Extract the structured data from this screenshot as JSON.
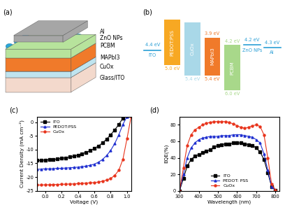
{
  "schematic": {
    "panel_label": "(a)",
    "layers": [
      {
        "name": "Al",
        "kind": "slab",
        "color": "#a6a6a6"
      },
      {
        "name": "ZnO NPs",
        "kind": "particles",
        "color": "#2aa6d8"
      },
      {
        "name": "PCBM",
        "kind": "slab",
        "color": "#b7e39c"
      },
      {
        "name": "MAPbI3",
        "kind": "slab",
        "color": "#f07a2a"
      },
      {
        "name": "CuOx",
        "kind": "slab",
        "color": "#bfe4ef"
      },
      {
        "name": "Glass/ITO",
        "kind": "slab",
        "color": "#f3d9cc"
      }
    ]
  },
  "energy_diagram": {
    "panel_label": "(b)",
    "items": [
      {
        "name": "ITO",
        "kind": "line",
        "color": "#2a9fd6",
        "level": {
          "value": 4.4,
          "label": "4.4 eV"
        }
      },
      {
        "name": "PEDOT:PSS",
        "kind": "box",
        "color": "#f7a823",
        "top": 3.2,
        "bottom": {
          "value": 5.0,
          "label": "5.0 eV"
        }
      },
      {
        "name": "CuOx",
        "kind": "box",
        "color": "#a9d8e8",
        "top": 3.3,
        "bottom": {
          "value": 5.4,
          "label": "5.4 eV"
        }
      },
      {
        "name": "MAPbI3",
        "kind": "box",
        "color": "#f07a2a",
        "top": {
          "value": 3.9,
          "label": "3.9 eV"
        },
        "bottom": {
          "value": 5.4,
          "label": "5.4 eV"
        }
      },
      {
        "name": "PCBM",
        "kind": "box",
        "color": "#a8d88a",
        "top": {
          "value": 4.2,
          "label": "4.2 eV"
        },
        "bottom": {
          "value": 6.0,
          "label": "6.0 eV"
        }
      },
      {
        "name": "ZnO NPs",
        "kind": "line",
        "color": "#2a9fd6",
        "level": {
          "value": 4.2,
          "label": "4.2 eV"
        }
      },
      {
        "name": "Al",
        "kind": "line",
        "color": "#2a9fd6",
        "level": {
          "value": 4.3,
          "label": "4.3 eV"
        }
      }
    ]
  },
  "chart_data": [
    {
      "type": "line",
      "title": "(c)",
      "x_label": "Voltage (V)",
      "y_label": "Current Density (mA cm⁻²)",
      "x": [
        -0.1,
        -0.05,
        0.0,
        0.05,
        0.1,
        0.15,
        0.2,
        0.25,
        0.3,
        0.35,
        0.4,
        0.45,
        0.5,
        0.55,
        0.6,
        0.65,
        0.7,
        0.75,
        0.8,
        0.85,
        0.9,
        0.95,
        1.0,
        1.05
      ],
      "series": [
        {
          "name": "ITO",
          "color": "#000000",
          "marker": "square",
          "line_style": "solid",
          "values": [
            -14.0,
            -13.9,
            -13.8,
            -13.7,
            -13.6,
            -13.4,
            -13.2,
            -13.0,
            -12.7,
            -12.4,
            -12.0,
            -11.5,
            -11.0,
            -10.4,
            -9.6,
            -8.7,
            -7.6,
            -6.2,
            -4.6,
            -2.8,
            -0.9,
            1.5,
            null,
            null
          ]
        },
        {
          "name": "PEDOT:PSS",
          "color": "#1f2fd0",
          "marker": "triangle",
          "line_style": "solid",
          "values": [
            -17.2,
            -17.1,
            -17.0,
            -17.0,
            -16.9,
            -16.8,
            -16.8,
            -16.7,
            -16.6,
            -16.5,
            -16.4,
            -16.2,
            -16.0,
            -15.7,
            -15.3,
            -14.6,
            -13.6,
            -12.2,
            -10.3,
            -7.8,
            -4.6,
            -0.8,
            2.0,
            null
          ]
        },
        {
          "name": "CuOx",
          "color": "#e8341c",
          "marker": "circle",
          "line_style": "solid",
          "values": [
            -22.9,
            -22.9,
            -22.8,
            -22.8,
            -22.7,
            -22.7,
            -22.6,
            -22.6,
            -22.5,
            -22.5,
            -22.4,
            -22.3,
            -22.2,
            -22.1,
            -22.0,
            -21.8,
            -21.5,
            -21.1,
            -20.5,
            -19.4,
            -17.5,
            -13.5,
            -6.0,
            2.0
          ]
        }
      ],
      "xlim": [
        -0.1,
        1.05
      ],
      "xticks": [
        0.0,
        0.2,
        0.4,
        0.6,
        0.8,
        1.0
      ],
      "ylim": [
        -25,
        2
      ],
      "yticks": [
        -25,
        -20,
        -15,
        -10,
        -5,
        0
      ],
      "legend": "upper left"
    },
    {
      "type": "line",
      "title": "(d)",
      "x_label": "Wavelength (nm)",
      "y_label": "EQE(%)",
      "x": [
        300,
        320,
        340,
        360,
        380,
        400,
        420,
        440,
        460,
        480,
        500,
        520,
        540,
        560,
        580,
        600,
        620,
        640,
        660,
        680,
        700,
        720,
        740,
        760,
        780,
        800
      ],
      "series": [
        {
          "name": "ITO",
          "color": "#000000",
          "marker": "square",
          "line_style": "solid",
          "values": [
            0,
            15,
            30,
            38,
            42,
            44,
            46,
            48,
            50,
            53,
            55,
            56,
            57,
            57,
            58,
            58,
            58,
            57,
            56,
            55,
            52,
            47,
            38,
            22,
            5,
            1
          ]
        },
        {
          "name": "PEDOT: PSS",
          "color": "#1f2fd0",
          "marker": "triangle",
          "line_style": "solid",
          "values": [
            0,
            20,
            40,
            52,
            58,
            62,
            64,
            65,
            66,
            66,
            66,
            67,
            67,
            67,
            68,
            68,
            68,
            67,
            66,
            65,
            62,
            58,
            45,
            25,
            5,
            1
          ]
        },
        {
          "name": "CuOx",
          "color": "#e8341c",
          "marker": "circle",
          "line_style": "solid",
          "values": [
            0,
            28,
            55,
            68,
            74,
            77,
            80,
            82,
            83,
            84,
            84,
            84,
            84,
            83,
            81,
            79,
            77,
            76,
            77,
            79,
            80,
            78,
            68,
            40,
            8,
            1
          ]
        }
      ],
      "xlim": [
        300,
        820
      ],
      "xticks": [
        300,
        400,
        500,
        600,
        700,
        800
      ],
      "ylim": [
        0,
        90
      ],
      "yticks": [
        0,
        20,
        40,
        60,
        80
      ],
      "legend": "lower center"
    }
  ]
}
